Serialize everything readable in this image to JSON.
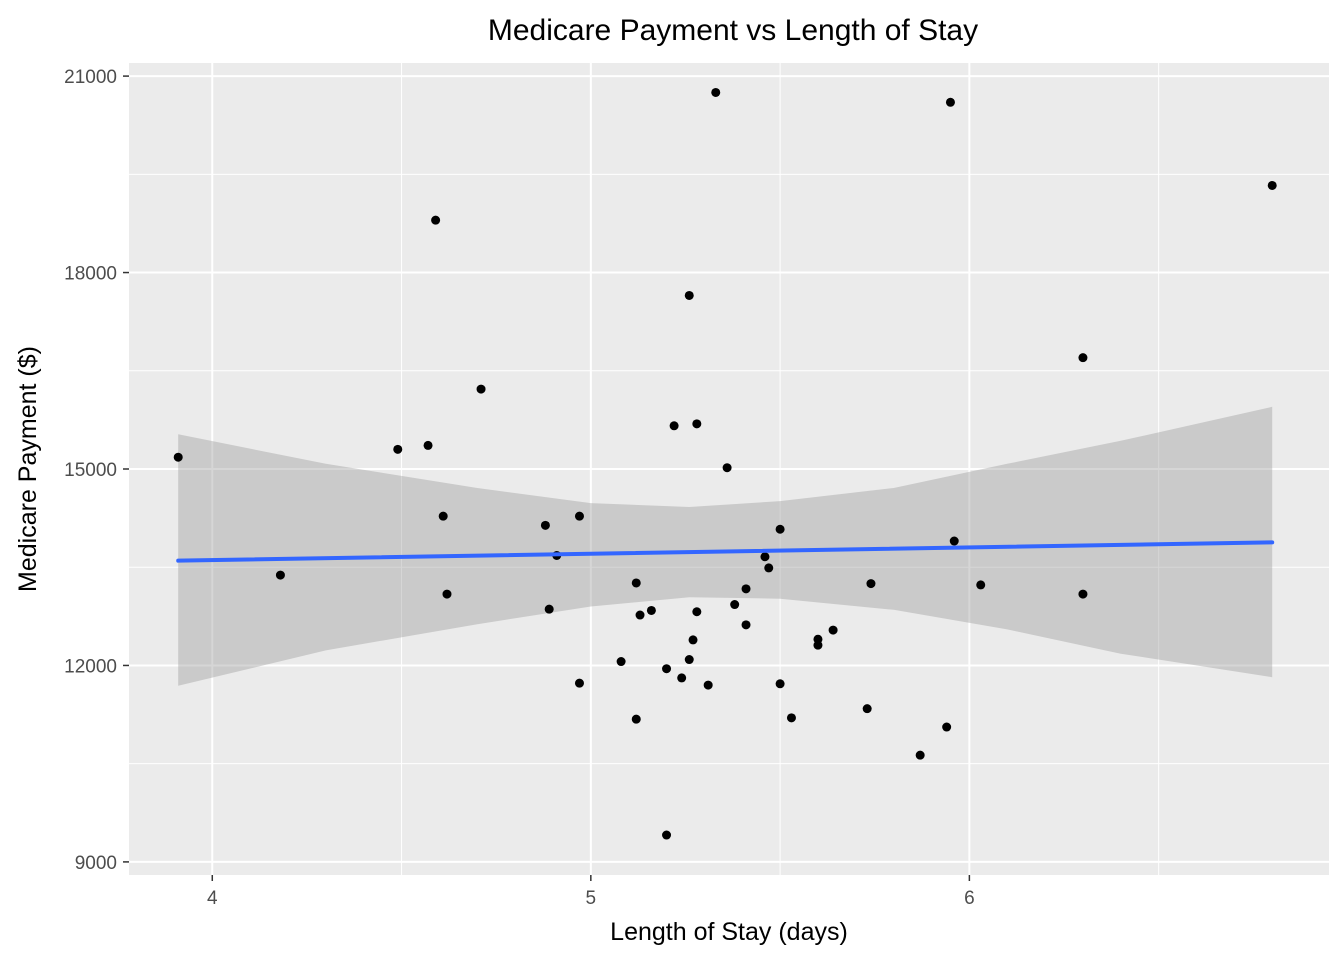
{
  "chart_data": {
    "type": "scatter",
    "title": "Medicare Payment  vs Length of Stay",
    "xlabel": "Length of Stay (days)",
    "ylabel": "Medicare Payment ($)",
    "xlim": [
      3.78,
      6.95
    ],
    "ylim": [
      8800,
      21200
    ],
    "x_ticks": [
      4,
      5,
      6
    ],
    "x_tick_labels": [
      "4",
      "5",
      "6"
    ],
    "x_minor_ticks": [
      4.5,
      5.5,
      6.5
    ],
    "y_ticks": [
      9000,
      12000,
      15000,
      18000,
      21000
    ],
    "y_tick_labels": [
      "9000",
      "12000",
      "15000",
      "18000",
      "21000"
    ],
    "y_minor_ticks": [
      10500,
      13500,
      16500,
      19500
    ],
    "grid": true,
    "legend": "none",
    "colors": {
      "panel": "#ebebeb",
      "grid": "#ffffff",
      "point": "#000000",
      "fit_line": "#3366ff",
      "confidence_band": "#999999"
    },
    "points": [
      {
        "x": 3.91,
        "y": 15180
      },
      {
        "x": 4.18,
        "y": 13380
      },
      {
        "x": 4.49,
        "y": 15300
      },
      {
        "x": 4.57,
        "y": 15360
      },
      {
        "x": 4.59,
        "y": 18800
      },
      {
        "x": 4.61,
        "y": 14280
      },
      {
        "x": 4.62,
        "y": 13090
      },
      {
        "x": 4.71,
        "y": 16220
      },
      {
        "x": 4.88,
        "y": 14140
      },
      {
        "x": 4.89,
        "y": 12860
      },
      {
        "x": 4.91,
        "y": 13680
      },
      {
        "x": 4.97,
        "y": 14280
      },
      {
        "x": 4.97,
        "y": 11730
      },
      {
        "x": 5.08,
        "y": 12060
      },
      {
        "x": 5.12,
        "y": 13260
      },
      {
        "x": 5.12,
        "y": 11180
      },
      {
        "x": 5.13,
        "y": 12770
      },
      {
        "x": 5.16,
        "y": 12840
      },
      {
        "x": 5.2,
        "y": 11950
      },
      {
        "x": 5.2,
        "y": 9410
      },
      {
        "x": 5.22,
        "y": 15660
      },
      {
        "x": 5.24,
        "y": 11810
      },
      {
        "x": 5.26,
        "y": 12090
      },
      {
        "x": 5.26,
        "y": 17650
      },
      {
        "x": 5.27,
        "y": 12390
      },
      {
        "x": 5.28,
        "y": 12820
      },
      {
        "x": 5.28,
        "y": 15690
      },
      {
        "x": 5.31,
        "y": 11700
      },
      {
        "x": 5.33,
        "y": 20750
      },
      {
        "x": 5.36,
        "y": 15020
      },
      {
        "x": 5.38,
        "y": 12930
      },
      {
        "x": 5.41,
        "y": 12620
      },
      {
        "x": 5.41,
        "y": 13170
      },
      {
        "x": 5.46,
        "y": 13660
      },
      {
        "x": 5.47,
        "y": 13490
      },
      {
        "x": 5.5,
        "y": 14080
      },
      {
        "x": 5.5,
        "y": 11720
      },
      {
        "x": 5.53,
        "y": 11200
      },
      {
        "x": 5.6,
        "y": 12400
      },
      {
        "x": 5.6,
        "y": 12310
      },
      {
        "x": 5.64,
        "y": 12540
      },
      {
        "x": 5.73,
        "y": 11340
      },
      {
        "x": 5.74,
        "y": 13250
      },
      {
        "x": 5.87,
        "y": 10630
      },
      {
        "x": 5.94,
        "y": 11060
      },
      {
        "x": 5.95,
        "y": 20600
      },
      {
        "x": 5.96,
        "y": 13900
      },
      {
        "x": 6.03,
        "y": 13230
      },
      {
        "x": 6.3,
        "y": 16700
      },
      {
        "x": 6.3,
        "y": 13090
      },
      {
        "x": 6.8,
        "y": 19330
      }
    ],
    "fit": {
      "method": "linear",
      "x": [
        3.91,
        6.8
      ],
      "y": [
        13600,
        13880
      ]
    },
    "confidence_band": {
      "x": [
        3.91,
        4.3,
        4.7,
        5.0,
        5.26,
        5.5,
        5.8,
        6.1,
        6.4,
        6.8
      ],
      "lower": [
        11690,
        12230,
        12630,
        12900,
        13040,
        13020,
        12850,
        12550,
        12180,
        11820
      ],
      "upper": [
        15530,
        15080,
        14710,
        14480,
        14420,
        14510,
        14710,
        15080,
        15430,
        15950
      ]
    }
  }
}
